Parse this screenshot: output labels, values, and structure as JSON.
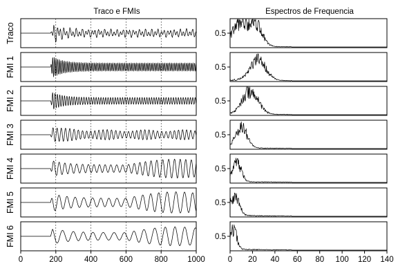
{
  "chart_data": [
    {
      "type": "line",
      "title": "Traco e FMIs",
      "xlim": [
        0,
        1000
      ],
      "x_ticks": [
        "0",
        "200",
        "400",
        "600",
        "800",
        "1000"
      ],
      "grid_x": [
        200,
        400,
        600,
        800
      ],
      "first_arrival": 170,
      "series": [
        {
          "name": "Traco",
          "amplitude": 1.0,
          "dominant_freq": 3.2,
          "component": "sum"
        },
        {
          "name": "FMI 1",
          "amplitude": 0.9,
          "dominant_freq": 5.5
        },
        {
          "name": "FMI 2",
          "amplitude": 0.75,
          "dominant_freq": 3.8
        },
        {
          "name": "FMI 3",
          "amplitude": 0.7,
          "dominant_freq": 2.2
        },
        {
          "name": "FMI 4",
          "amplitude": 0.8,
          "dominant_freq": 1.6
        },
        {
          "name": "FMI 5",
          "amplitude": 0.9,
          "dominant_freq": 1.1
        },
        {
          "name": "FMI 6",
          "amplitude": 0.8,
          "dominant_freq": 0.9
        }
      ]
    },
    {
      "type": "line",
      "title": "Espectros de Frequencia",
      "xlim": [
        0,
        140
      ],
      "x_ticks": [
        "0",
        "20",
        "40",
        "60",
        "80",
        "100",
        "120",
        "140"
      ],
      "y_tick": "0.5",
      "ylim": [
        0,
        1
      ],
      "series": [
        {
          "name": "Traco",
          "peaks": [
            [
              8,
              0.95,
              6
            ],
            [
              22,
              1.05,
              6
            ]
          ]
        },
        {
          "name": "FMI 1",
          "peaks": [
            [
              25,
              0.85,
              7
            ]
          ]
        },
        {
          "name": "FMI 2",
          "peaks": [
            [
              18,
              1.0,
              7
            ]
          ]
        },
        {
          "name": "FMI 3",
          "peaks": [
            [
              10,
              0.9,
              5
            ]
          ]
        },
        {
          "name": "FMI 4",
          "peaks": [
            [
              6,
              0.8,
              4
            ]
          ]
        },
        {
          "name": "FMI 5",
          "peaks": [
            [
              4,
              0.8,
              4
            ]
          ]
        },
        {
          "name": "FMI 6",
          "peaks": [
            [
              3,
              0.85,
              3
            ]
          ]
        }
      ]
    }
  ]
}
